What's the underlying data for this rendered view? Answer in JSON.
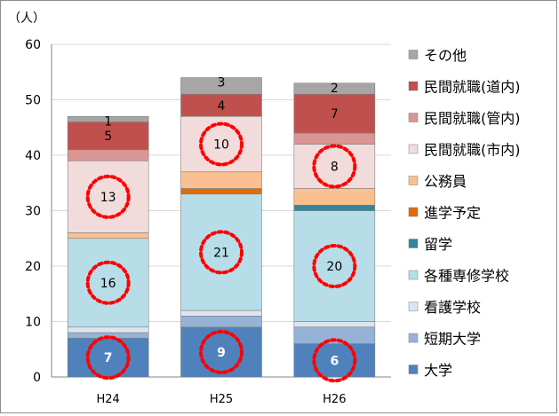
{
  "chart_data": {
    "type": "bar",
    "stacked": true,
    "unit_label": "（人）",
    "categories": [
      "H24",
      "H25",
      "H26"
    ],
    "ylim": [
      0,
      60
    ],
    "yticks": [
      0,
      10,
      20,
      30,
      40,
      50,
      60
    ],
    "grid": true,
    "legend_placement": "right",
    "series": [
      {
        "name": "大学",
        "color": "#4f81bd",
        "values": [
          7,
          9,
          6
        ],
        "show_labels": true,
        "label_color": "#ffffff"
      },
      {
        "name": "短期大学",
        "color": "#95b3d7",
        "values": [
          1,
          2,
          3
        ],
        "show_labels": false
      },
      {
        "name": "看護学校",
        "color": "#dce6f1",
        "values": [
          1,
          1,
          1
        ],
        "show_labels": false
      },
      {
        "name": "各種専修学校",
        "color": "#b7dee8",
        "values": [
          16,
          21,
          20
        ],
        "show_labels": true,
        "label_color": "#000000"
      },
      {
        "name": "留学",
        "color": "#31859c",
        "values": [
          0,
          0,
          1
        ],
        "show_labels": false
      },
      {
        "name": "進学予定",
        "color": "#e26b0a",
        "values": [
          0,
          1,
          0
        ],
        "show_labels": false
      },
      {
        "name": "公務員",
        "color": "#fac090",
        "values": [
          1,
          3,
          3
        ],
        "show_labels": false
      },
      {
        "name": "民間就職(市内)",
        "color": "#f2dcdb",
        "values": [
          13,
          10,
          8
        ],
        "show_labels": true,
        "label_color": "#000000"
      },
      {
        "name": "民間就職(管内)",
        "color": "#da9694",
        "values": [
          2,
          0,
          2
        ],
        "show_labels": false
      },
      {
        "name": "民間就職(道内)",
        "color": "#c0504d",
        "values": [
          5,
          4,
          7
        ],
        "show_labels": true,
        "label_color": "#000000"
      },
      {
        "name": "その他",
        "color": "#a6a6a6",
        "values": [
          1,
          3,
          2
        ],
        "show_labels": true,
        "label_color": "#000000"
      }
    ],
    "highlight_series": [
      "大学",
      "各種専修学校",
      "民間就職(市内)"
    ],
    "highlight_color": "#ff0000"
  }
}
